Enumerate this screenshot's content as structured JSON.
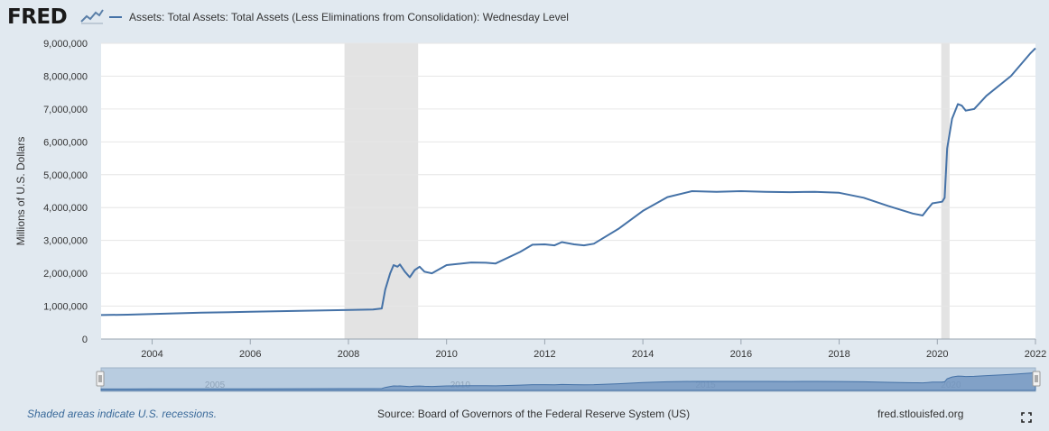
{
  "brand": {
    "logo": "FRED"
  },
  "legend": {
    "label": "Assets: Total Assets: Total Assets (Less Eliminations from Consolidation): Wednesday Level",
    "color": "#4572a7"
  },
  "footer": {
    "note": "Shaded areas indicate U.S. recessions.",
    "source": "Source: Board of Governors of the Federal Reserve System (US)",
    "url": "fred.stlouisfed.org"
  },
  "navigator": {
    "labels": [
      "2005",
      "2010",
      "2015",
      "2020"
    ]
  },
  "icons": {
    "fullscreen": "fullscreen-icon",
    "logo_graph": "line-graph-icon"
  },
  "chart_data": {
    "type": "line",
    "title": "",
    "xlabel": "",
    "ylabel": "Millions of U.S. Dollars",
    "xlim": [
      2002.96,
      2022.0
    ],
    "ylim": [
      0,
      9000000
    ],
    "y_ticks": [
      0,
      1000000,
      2000000,
      3000000,
      4000000,
      5000000,
      6000000,
      7000000,
      8000000,
      9000000
    ],
    "y_tick_labels": [
      "0",
      "1,000,000",
      "2,000,000",
      "3,000,000",
      "4,000,000",
      "5,000,000",
      "6,000,000",
      "7,000,000",
      "8,000,000",
      "9,000,000"
    ],
    "x_ticks": [
      2004,
      2006,
      2008,
      2010,
      2012,
      2014,
      2016,
      2018,
      2020,
      2022
    ],
    "x_tick_labels": [
      "2004",
      "2006",
      "2008",
      "2010",
      "2012",
      "2014",
      "2016",
      "2018",
      "2020",
      "2022"
    ],
    "recessions": [
      [
        2007.92,
        2009.42
      ],
      [
        2020.08,
        2020.25
      ]
    ],
    "grid": true,
    "series": [
      {
        "name": "Assets: Total Assets: Total Assets (Less Eliminations from Consolidation): Wednesday Level",
        "points": [
          [
            2002.96,
            730000
          ],
          [
            2003.5,
            740000
          ],
          [
            2004.0,
            760000
          ],
          [
            2005.0,
            800000
          ],
          [
            2006.0,
            830000
          ],
          [
            2007.0,
            860000
          ],
          [
            2007.9,
            880000
          ],
          [
            2008.5,
            900000
          ],
          [
            2008.68,
            930000
          ],
          [
            2008.75,
            1500000
          ],
          [
            2008.85,
            2000000
          ],
          [
            2008.92,
            2250000
          ],
          [
            2009.0,
            2200000
          ],
          [
            2009.05,
            2270000
          ],
          [
            2009.15,
            2050000
          ],
          [
            2009.25,
            1880000
          ],
          [
            2009.35,
            2100000
          ],
          [
            2009.45,
            2200000
          ],
          [
            2009.55,
            2050000
          ],
          [
            2009.7,
            2000000
          ],
          [
            2010.0,
            2250000
          ],
          [
            2010.5,
            2330000
          ],
          [
            2010.8,
            2320000
          ],
          [
            2011.0,
            2300000
          ],
          [
            2011.5,
            2650000
          ],
          [
            2011.75,
            2870000
          ],
          [
            2012.0,
            2880000
          ],
          [
            2012.2,
            2850000
          ],
          [
            2012.35,
            2950000
          ],
          [
            2012.6,
            2880000
          ],
          [
            2012.8,
            2850000
          ],
          [
            2013.0,
            2900000
          ],
          [
            2013.5,
            3350000
          ],
          [
            2014.0,
            3900000
          ],
          [
            2014.5,
            4320000
          ],
          [
            2015.0,
            4500000
          ],
          [
            2015.5,
            4480000
          ],
          [
            2016.0,
            4500000
          ],
          [
            2016.5,
            4480000
          ],
          [
            2017.0,
            4470000
          ],
          [
            2017.5,
            4480000
          ],
          [
            2018.0,
            4450000
          ],
          [
            2018.5,
            4300000
          ],
          [
            2019.0,
            4050000
          ],
          [
            2019.5,
            3820000
          ],
          [
            2019.7,
            3760000
          ],
          [
            2019.8,
            3950000
          ],
          [
            2019.9,
            4130000
          ],
          [
            2020.1,
            4180000
          ],
          [
            2020.15,
            4300000
          ],
          [
            2020.2,
            5800000
          ],
          [
            2020.3,
            6700000
          ],
          [
            2020.42,
            7150000
          ],
          [
            2020.5,
            7100000
          ],
          [
            2020.58,
            6950000
          ],
          [
            2020.75,
            7000000
          ],
          [
            2021.0,
            7400000
          ],
          [
            2021.5,
            8000000
          ],
          [
            2021.9,
            8700000
          ],
          [
            2022.0,
            8850000
          ]
        ]
      }
    ]
  }
}
